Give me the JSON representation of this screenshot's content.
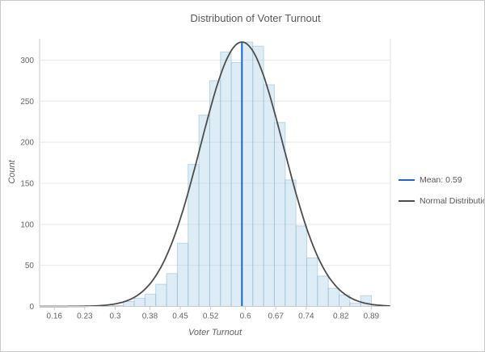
{
  "chart_data": {
    "type": "histogram",
    "title": "Distribution of Voter Turnout",
    "xlabel": "Voter Turnout",
    "ylabel": "Count",
    "x_ticks": [
      "0.16",
      "0.23",
      "0.3",
      "0.38",
      "0.45",
      "0.52",
      "0.6",
      "0.67",
      "0.74",
      "0.82",
      "0.89"
    ],
    "x_tick_values": [
      0.16,
      0.23,
      0.3,
      0.38,
      0.45,
      0.52,
      0.6,
      0.67,
      0.74,
      0.82,
      0.89
    ],
    "y_ticks": [
      0,
      50,
      100,
      150,
      200,
      250,
      300
    ],
    "xlim": [
      0.126,
      0.934
    ],
    "ylim": [
      0,
      326
    ],
    "grid": "horizontal",
    "bins": {
      "start": 0.2693,
      "width": 0.02484,
      "counts": [
        2,
        1,
        6,
        10,
        15,
        27,
        40,
        77,
        173,
        233,
        275,
        310,
        297,
        322,
        317,
        270,
        224,
        154,
        98,
        59,
        37,
        22,
        14,
        4,
        13,
        2
      ]
    },
    "normal_curve": {
      "mean": 0.592,
      "sigma": 0.0955,
      "peak": 322
    },
    "mean_line": {
      "x": 0.592,
      "value_label": "0.59"
    },
    "legend": [
      {
        "label": "Mean: 0.59",
        "color": "#1a66cc"
      },
      {
        "label": "Normal Distribution",
        "color": "#4d4d4d"
      }
    ],
    "legend_position": "right",
    "colors": {
      "bar_fill": "#aed2e6",
      "bar_fill_opacity": 0.42,
      "bar_stroke": "#8fbcd6",
      "bar_stroke_opacity": 0.55,
      "curve": "#4d4d4d",
      "mean_line": "#1a66cc",
      "grid": "#e8e8e8",
      "axis": "#c9c9c9",
      "tick_text": "#666666"
    }
  }
}
